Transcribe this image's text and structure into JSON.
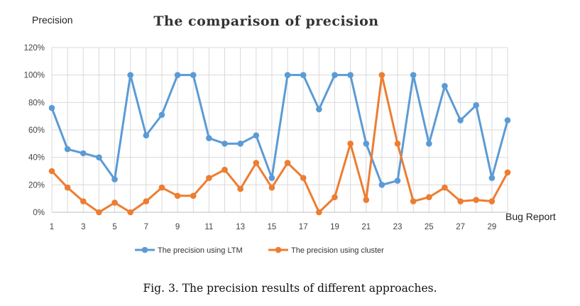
{
  "caption": "Fig. 3.  The precision results of different approaches.",
  "chart_data": {
    "type": "line",
    "title": "The comparison of precision",
    "ylabel": "Precision",
    "xlabel": "Bug Report",
    "ylim": [
      0,
      120
    ],
    "yticks": [
      "0%",
      "20%",
      "40%",
      "60%",
      "80%",
      "100%",
      "120%"
    ],
    "x": [
      1,
      2,
      3,
      4,
      5,
      6,
      7,
      8,
      9,
      10,
      11,
      12,
      13,
      14,
      15,
      16,
      17,
      18,
      19,
      20,
      21,
      22,
      23,
      24,
      25,
      26,
      27,
      28,
      29,
      30
    ],
    "xtick_labels": [
      "1",
      "3",
      "5",
      "7",
      "9",
      "11",
      "13",
      "15",
      "17",
      "19",
      "21",
      "23",
      "25",
      "27",
      "29"
    ],
    "grid": "vertical and horizontal",
    "legend_position": "bottom",
    "series": [
      {
        "name": "The precision  using LTM",
        "color": "#5B9BD5",
        "values": [
          76,
          46,
          43,
          40,
          24,
          100,
          56,
          71,
          100,
          100,
          54,
          50,
          50,
          56,
          25,
          100,
          100,
          75,
          100,
          100,
          50,
          20,
          23,
          100,
          50,
          92,
          67,
          78,
          25,
          67
        ]
      },
      {
        "name": "The precision using cluster",
        "color": "#ED7D31",
        "values": [
          30,
          18,
          8,
          0,
          7,
          0,
          8,
          18,
          12,
          12,
          25,
          31,
          17,
          36,
          18,
          36,
          25,
          0,
          11,
          50,
          9,
          100,
          50,
          8,
          11,
          18,
          8,
          9,
          8,
          29
        ]
      }
    ]
  }
}
